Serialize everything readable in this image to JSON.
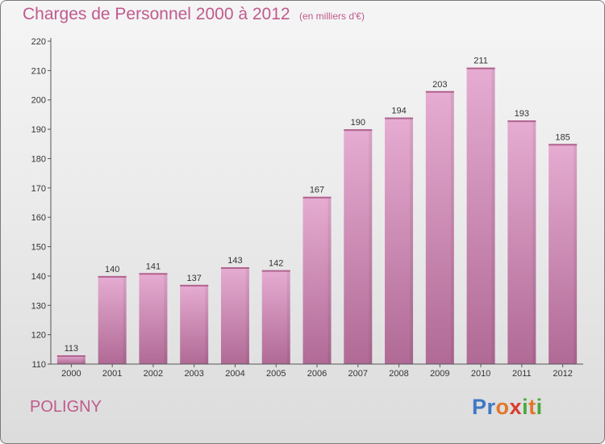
{
  "header": {
    "title": "Charges de Personnel 2000 à 2012",
    "subtitle": "(en milliers d'€)"
  },
  "footer": {
    "commune": "POLIGNY",
    "logo_text": "Proxiti"
  },
  "colors": {
    "accent": "#c05a8e",
    "bar_top": "#e4a8cf",
    "bar_bottom": "#b06a95",
    "logo_letters": [
      "#3f78c4",
      "#3f78c4",
      "#e2762a",
      "#d93b2e",
      "#4aa83c",
      "#e2762a",
      "#4aa83c"
    ]
  },
  "chart_data": {
    "type": "bar",
    "categories": [
      "2000",
      "2001",
      "2002",
      "2003",
      "2004",
      "2005",
      "2006",
      "2007",
      "2008",
      "2009",
      "2010",
      "2011",
      "2012"
    ],
    "values": [
      113,
      140,
      141,
      137,
      143,
      142,
      167,
      190,
      194,
      203,
      211,
      193,
      185
    ],
    "ylim": [
      110,
      220
    ],
    "yticks": [
      110,
      120,
      130,
      140,
      150,
      160,
      170,
      180,
      190,
      200,
      210,
      220
    ],
    "grid": false
  }
}
